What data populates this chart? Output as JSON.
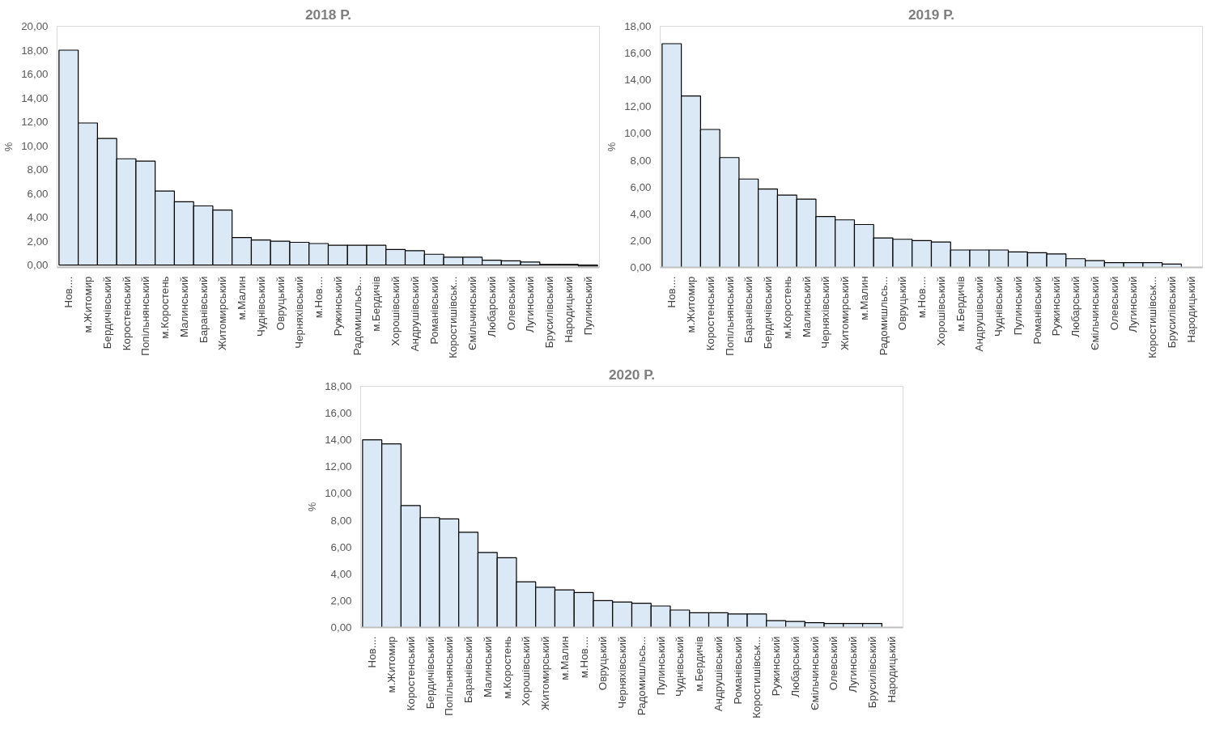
{
  "chart_data": [
    {
      "type": "bar",
      "title": "2018 Р.",
      "ylabel": "%",
      "color": "#dbe8f5",
      "grid": false,
      "categories": [
        "Нов....",
        "м.Житомир",
        "Бердичівський",
        "Коростенський",
        "Попільнянський",
        "м.Коростень",
        "Малинський",
        "Баранівський",
        "Житомирський",
        "м.Малин",
        "Чуднівський",
        "Овруцький",
        "Черняхівський",
        "м.Нов....",
        "Ружинський",
        "Радомишльсь...",
        "м.Бердичів",
        "Хорошівський",
        "Андрушівський",
        "Романівський",
        "Коростишівськ...",
        "Ємільчинський",
        "Любарський",
        "Олевський",
        "Лугинський",
        "Брусилівський",
        "Народицький",
        "Пулинський"
      ],
      "values": [
        18.0,
        11.9,
        10.6,
        8.9,
        8.7,
        6.2,
        5.3,
        4.95,
        4.6,
        2.3,
        2.1,
        2.0,
        1.9,
        1.8,
        1.65,
        1.65,
        1.65,
        1.3,
        1.2,
        0.9,
        0.65,
        0.65,
        0.4,
        0.35,
        0.25,
        0.05,
        0.05,
        -0.1
      ],
      "ylim": [
        -0.2,
        20
      ],
      "yticks": [
        {
          "value": 0,
          "label": "0,00"
        },
        {
          "value": 2,
          "label": "2,00"
        },
        {
          "value": 4,
          "label": "4,00"
        },
        {
          "value": 6,
          "label": "6,00"
        },
        {
          "value": 8,
          "label": "8,00"
        },
        {
          "value": 10,
          "label": "10,00"
        },
        {
          "value": 12,
          "label": "12,00"
        },
        {
          "value": 14,
          "label": "14,00"
        },
        {
          "value": 16,
          "label": "16,00"
        },
        {
          "value": 18,
          "label": "18,00"
        },
        {
          "value": 20,
          "label": "20,00"
        }
      ]
    },
    {
      "type": "bar",
      "title": "2019 Р.",
      "ylabel": "%",
      "color": "#dbe8f5",
      "grid": false,
      "categories": [
        "Нов....",
        "м.Житомир",
        "Коростенський",
        "Попільнянський",
        "Баранівський",
        "Бердичівський",
        "м.Коростень",
        "Малинський",
        "Черняхівський",
        "Житомирський",
        "м.Малин",
        "Радомишльсь...",
        "Овруцький",
        "м.Нов....",
        "Хорошівський",
        "м.Бердичів",
        "Андрушівський",
        "Чуднівський",
        "Пулинський",
        "Романівський",
        "Ружинський",
        "Любарський",
        "Ємільчинський",
        "Олевський",
        "Лугинський",
        "Коростишівськ...",
        "Брусилівський",
        "Народицький"
      ],
      "values": [
        16.7,
        12.8,
        10.3,
        8.2,
        6.6,
        5.85,
        5.4,
        5.1,
        3.8,
        3.55,
        3.2,
        2.2,
        2.1,
        2.0,
        1.9,
        1.3,
        1.3,
        1.3,
        1.15,
        1.1,
        1.0,
        0.65,
        0.5,
        0.35,
        0.35,
        0.35,
        0.25,
        null
      ],
      "ylim": [
        0,
        18
      ],
      "yticks": [
        {
          "value": 0,
          "label": "0,00"
        },
        {
          "value": 2,
          "label": "2,00"
        },
        {
          "value": 4,
          "label": "4,00"
        },
        {
          "value": 6,
          "label": "6,00"
        },
        {
          "value": 8,
          "label": "8,00"
        },
        {
          "value": 10,
          "label": "10,00"
        },
        {
          "value": 12,
          "label": "12,00"
        },
        {
          "value": 14,
          "label": "14,00"
        },
        {
          "value": 16,
          "label": "16,00"
        },
        {
          "value": 18,
          "label": "18,00"
        }
      ]
    },
    {
      "type": "bar",
      "title": "2020 Р.",
      "ylabel": "%",
      "color": "#dbe8f5",
      "grid": false,
      "categories": [
        "Нов....",
        "м.Житомир",
        "Коростенський",
        "Бердичівський",
        "Попільнянський",
        "Баранівський",
        "Малинський",
        "м.Коростень",
        "Хорошівський",
        "Житомирський",
        "м.Малин",
        "м.Нов....",
        "Овруцький",
        "Черняхівський",
        "Радомишльсь...",
        "Пулинський",
        "Чуднівський",
        "м.Бердичів",
        "Андрушівський",
        "Романівський",
        "Коростишівськ...",
        "Ружинський",
        "Любарський",
        "Ємільчинський",
        "Олевський",
        "Лугинський",
        "Брусилівський",
        "Народицький"
      ],
      "values": [
        14.0,
        13.7,
        9.1,
        8.2,
        8.1,
        7.1,
        5.6,
        5.2,
        3.4,
        3.0,
        2.8,
        2.6,
        2.0,
        1.9,
        1.8,
        1.6,
        1.3,
        1.1,
        1.1,
        1.0,
        1.0,
        0.5,
        0.45,
        0.35,
        0.3,
        0.3,
        0.3,
        null
      ],
      "ylim": [
        0,
        18
      ],
      "yticks": [
        {
          "value": 0,
          "label": "0,00"
        },
        {
          "value": 2,
          "label": "2,00"
        },
        {
          "value": 4,
          "label": "4,00"
        },
        {
          "value": 6,
          "label": "6,00"
        },
        {
          "value": 8,
          "label": "8,00"
        },
        {
          "value": 10,
          "label": "10,00"
        },
        {
          "value": 12,
          "label": "12,00"
        },
        {
          "value": 14,
          "label": "14,00"
        },
        {
          "value": 16,
          "label": "16,00"
        },
        {
          "value": 18,
          "label": "18,00"
        }
      ]
    }
  ]
}
